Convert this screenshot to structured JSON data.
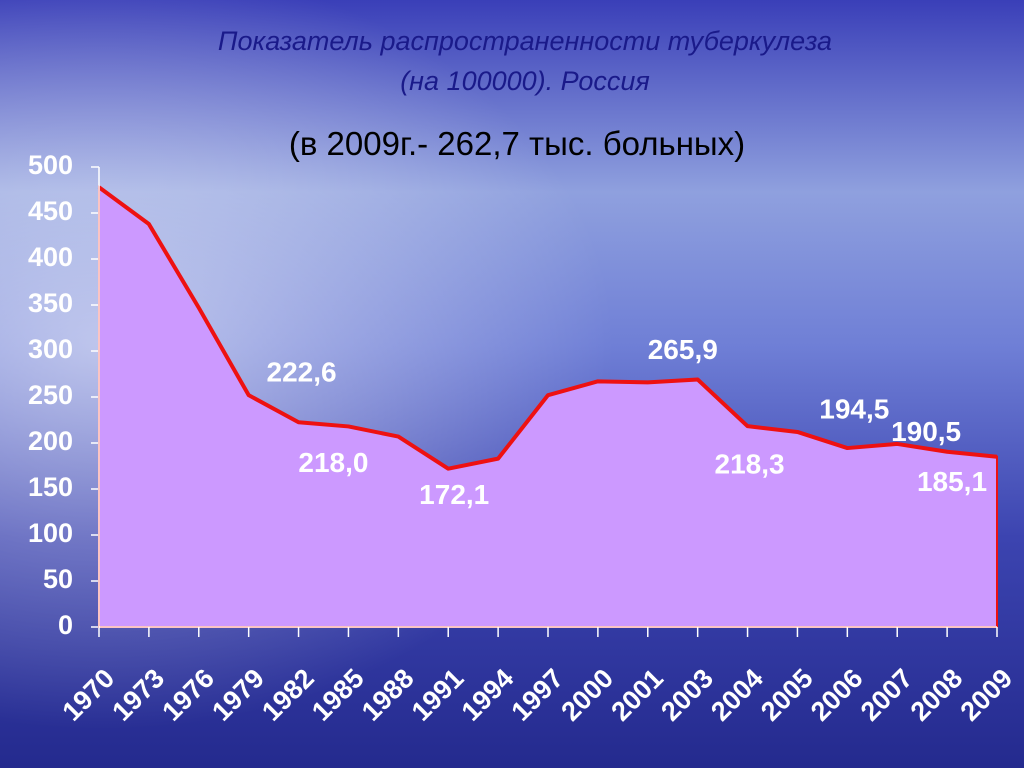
{
  "chart_data": {
    "type": "area",
    "title": [
      "Показатель распространенности туберкулеза",
      "(на 100000). Россия"
    ],
    "subtitle": "(в 2009г.- 262,7 тыс. больных)",
    "categories": [
      "1970",
      "1973",
      "1976",
      "1979",
      "1982",
      "1985",
      "1988",
      "1991",
      "1994",
      "1997",
      "2000",
      "2001",
      "2003",
      "2004",
      "2005",
      "2006",
      "2007",
      "2008",
      "2009"
    ],
    "values": [
      478,
      438,
      347,
      252,
      222.6,
      218.0,
      207,
      172.1,
      183,
      252,
      267,
      265.9,
      269,
      218.3,
      212,
      194.5,
      199,
      190.5,
      185.1
    ],
    "value_labels": [
      null,
      null,
      null,
      null,
      "222,6",
      "218,0",
      null,
      "172,1",
      null,
      null,
      null,
      "265,9",
      null,
      "218,3",
      null,
      "194,5",
      null,
      "190,5",
      "185,1"
    ],
    "color": "#cc99ff",
    "line_color": "#ee1111",
    "ylim": [
      0,
      500
    ],
    "yticks": [
      0,
      50,
      100,
      150,
      200,
      250,
      300,
      350,
      400,
      450,
      500
    ]
  }
}
